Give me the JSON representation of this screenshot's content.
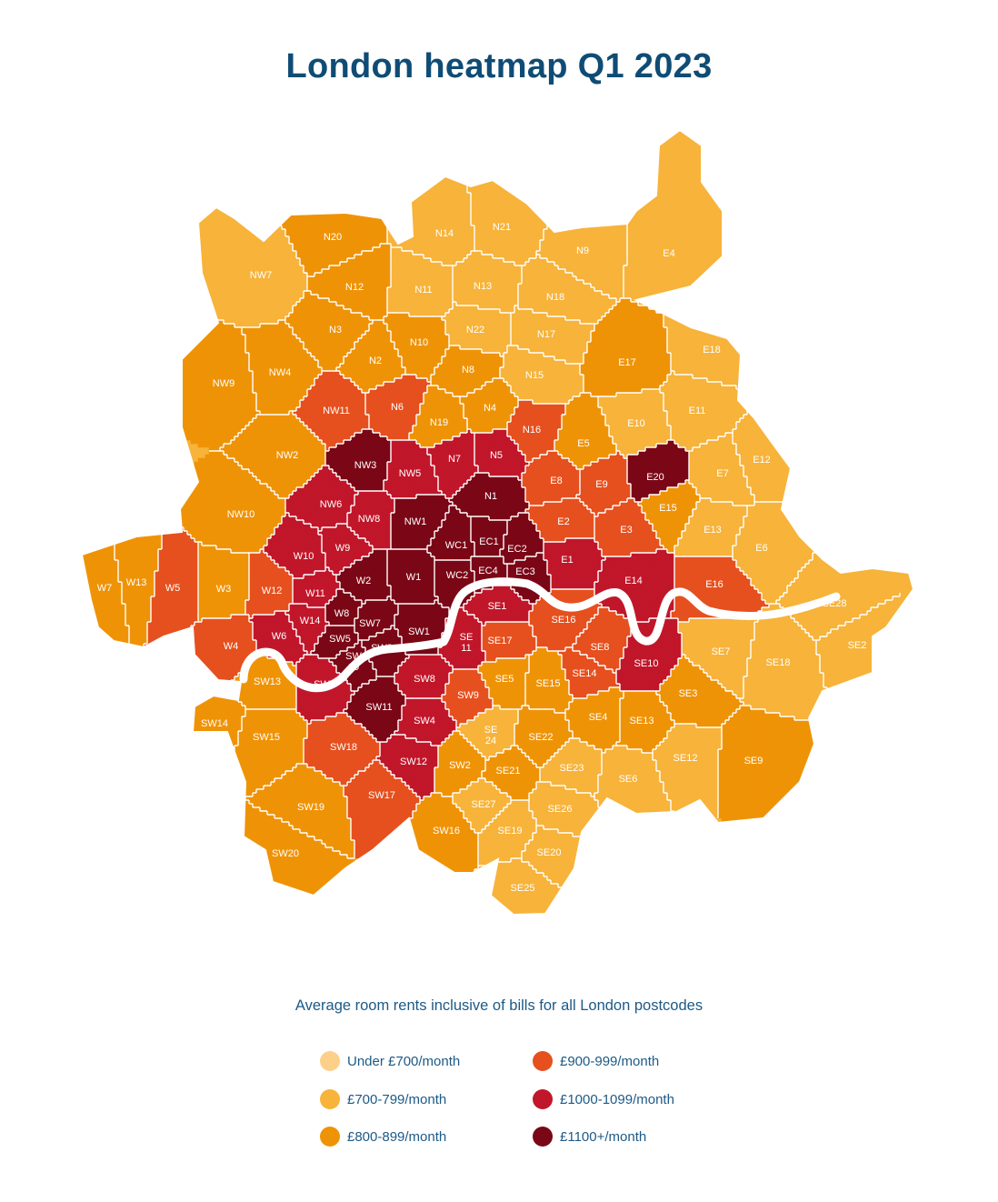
{
  "title": "London heatmap Q1 2023",
  "subtitle": "Average room rents inclusive of bills for all London postcodes",
  "legend": [
    {
      "label": "Under £700/month",
      "color": "#fdd08a"
    },
    {
      "label": "£700-799/month",
      "color": "#f7b33a"
    },
    {
      "label": "£800-899/month",
      "color": "#ef9306"
    },
    {
      "label": "£900-999/month",
      "color": "#e6501e"
    },
    {
      "label": "£1000-1099/month",
      "color": "#c1172a"
    },
    {
      "label": "£1100+/month",
      "color": "#7a0716"
    }
  ],
  "map_data": {
    "value_encoding": "rent band index 1-5 (matches legend order starting at £700-799/month)",
    "districts": [
      {
        "code": "NW7",
        "band": 1
      },
      {
        "code": "N20",
        "band": 2
      },
      {
        "code": "N12",
        "band": 2
      },
      {
        "code": "N3",
        "band": 2
      },
      {
        "code": "N14",
        "band": 1
      },
      {
        "code": "N21",
        "band": 1
      },
      {
        "code": "N9",
        "band": 1
      },
      {
        "code": "E4",
        "band": 1
      },
      {
        "code": "N11",
        "band": 1
      },
      {
        "code": "N13",
        "band": 1
      },
      {
        "code": "N18",
        "band": 1
      },
      {
        "code": "N22",
        "band": 1
      },
      {
        "code": "N17",
        "band": 1
      },
      {
        "code": "N10",
        "band": 2
      },
      {
        "code": "N2",
        "band": 2
      },
      {
        "code": "NW9",
        "band": 2
      },
      {
        "code": "NW4",
        "band": 2
      },
      {
        "code": "NW11",
        "band": 3
      },
      {
        "code": "N8",
        "band": 2
      },
      {
        "code": "N15",
        "band": 1
      },
      {
        "code": "E17",
        "band": 2
      },
      {
        "code": "E18",
        "band": 1
      },
      {
        "code": "N6",
        "band": 3
      },
      {
        "code": "N4",
        "band": 2
      },
      {
        "code": "N16",
        "band": 3
      },
      {
        "code": "E11",
        "band": 1
      },
      {
        "code": "E10",
        "band": 1
      },
      {
        "code": "N19",
        "band": 2
      },
      {
        "code": "NW2",
        "band": 2
      },
      {
        "code": "NW3",
        "band": 5
      },
      {
        "code": "NW5",
        "band": 4
      },
      {
        "code": "N7",
        "band": 4
      },
      {
        "code": "N5",
        "band": 4
      },
      {
        "code": "E5",
        "band": 2
      },
      {
        "code": "E12",
        "band": 1
      },
      {
        "code": "E7",
        "band": 1
      },
      {
        "code": "NW10",
        "band": 2
      },
      {
        "code": "NW6",
        "band": 4
      },
      {
        "code": "N1",
        "band": 5
      },
      {
        "code": "E8",
        "band": 3
      },
      {
        "code": "E9",
        "band": 3
      },
      {
        "code": "E20",
        "band": 5
      },
      {
        "code": "E15",
        "band": 2
      },
      {
        "code": "NW8",
        "band": 4
      },
      {
        "code": "NW1",
        "band": 5
      },
      {
        "code": "E2",
        "band": 3
      },
      {
        "code": "E13",
        "band": 1
      },
      {
        "code": "E6",
        "band": 1
      },
      {
        "code": "W10",
        "band": 4
      },
      {
        "code": "W9",
        "band": 4
      },
      {
        "code": "WC1",
        "band": 5
      },
      {
        "code": "EC1",
        "band": 5
      },
      {
        "code": "EC2",
        "band": 5
      },
      {
        "code": "E3",
        "band": 3
      },
      {
        "code": "W7",
        "band": 2
      },
      {
        "code": "W13",
        "band": 2
      },
      {
        "code": "W5",
        "band": 3
      },
      {
        "code": "W3",
        "band": 2
      },
      {
        "code": "W12",
        "band": 3
      },
      {
        "code": "W2",
        "band": 5
      },
      {
        "code": "W1",
        "band": 5
      },
      {
        "code": "WC2",
        "band": 5
      },
      {
        "code": "EC4",
        "band": 5
      },
      {
        "code": "EC3",
        "band": 5
      },
      {
        "code": "E1",
        "band": 4
      },
      {
        "code": "E14",
        "band": 4
      },
      {
        "code": "E16",
        "band": 3
      },
      {
        "code": "W11",
        "band": 4
      },
      {
        "code": "W8",
        "band": 5
      },
      {
        "code": "SE1",
        "band": 4
      },
      {
        "code": "SE28",
        "band": 1
      },
      {
        "code": "W4",
        "band": 3
      },
      {
        "code": "W6",
        "band": 4
      },
      {
        "code": "W14",
        "band": 4
      },
      {
        "code": "SW7",
        "band": 5
      },
      {
        "code": "SW1",
        "band": 5
      },
      {
        "code": "SE16",
        "band": 3
      },
      {
        "code": "SE2",
        "band": 1
      },
      {
        "code": "SW5",
        "band": 5
      },
      {
        "code": "SW10",
        "band": 5
      },
      {
        "code": "SW3",
        "band": 5
      },
      {
        "code": "SE11",
        "band": 4
      },
      {
        "code": "SE17",
        "band": 3
      },
      {
        "code": "SE8",
        "band": 3
      },
      {
        "code": "SE7",
        "band": 1
      },
      {
        "code": "SE18",
        "band": 1
      },
      {
        "code": "SW13",
        "band": 2
      },
      {
        "code": "SW6",
        "band": 4
      },
      {
        "code": "SE10",
        "band": 4
      },
      {
        "code": "SE14",
        "band": 3
      },
      {
        "code": "SE5",
        "band": 2
      },
      {
        "code": "SE15",
        "band": 2
      },
      {
        "code": "SW8",
        "band": 4
      },
      {
        "code": "SW11",
        "band": 5
      },
      {
        "code": "SW9",
        "band": 3
      },
      {
        "code": "SE3",
        "band": 2
      },
      {
        "code": "SW14",
        "band": 2
      },
      {
        "code": "SW15",
        "band": 2
      },
      {
        "code": "SW4",
        "band": 4
      },
      {
        "code": "SE4",
        "band": 2
      },
      {
        "code": "SE13",
        "band": 2
      },
      {
        "code": "SE24",
        "band": 1
      },
      {
        "code": "SE22",
        "band": 2
      },
      {
        "code": "SW18",
        "band": 3
      },
      {
        "code": "SE12",
        "band": 1
      },
      {
        "code": "SE9",
        "band": 2
      },
      {
        "code": "SW12",
        "band": 4
      },
      {
        "code": "SE23",
        "band": 1
      },
      {
        "code": "SW2",
        "band": 2
      },
      {
        "code": "SE21",
        "band": 2
      },
      {
        "code": "SE6",
        "band": 1
      },
      {
        "code": "SW19",
        "band": 2
      },
      {
        "code": "SW17",
        "band": 3
      },
      {
        "code": "SE27",
        "band": 1
      },
      {
        "code": "SE26",
        "band": 1
      },
      {
        "code": "SW16",
        "band": 2
      },
      {
        "code": "SE19",
        "band": 1
      },
      {
        "code": "SE20",
        "band": 1
      },
      {
        "code": "SW20",
        "band": 2
      },
      {
        "code": "SE25",
        "band": 1
      }
    ]
  }
}
